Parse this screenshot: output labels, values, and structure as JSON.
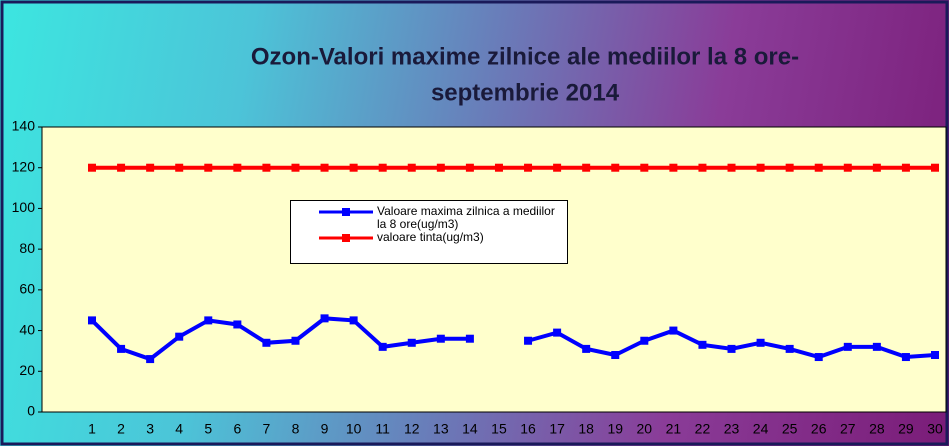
{
  "chart_data": {
    "type": "line",
    "title": [
      "Ozon-Valori maxime zilnice ale mediilor la 8 ore-",
      "septembrie  2014"
    ],
    "categories": [
      1,
      2,
      3,
      4,
      5,
      6,
      7,
      8,
      9,
      10,
      11,
      12,
      13,
      14,
      15,
      16,
      17,
      18,
      19,
      20,
      21,
      22,
      23,
      24,
      25,
      26,
      27,
      28,
      29,
      30
    ],
    "series": [
      {
        "name": "Valoare maxima zilnica a mediilor  la 8 ore(ug/m3)",
        "color": "#0000ff",
        "values": [
          45,
          31,
          26,
          37,
          45,
          43,
          34,
          35,
          46,
          45,
          32,
          34,
          36,
          36,
          null,
          35,
          39,
          31,
          28,
          35,
          40,
          33,
          31,
          34,
          31,
          27,
          32,
          32,
          27,
          28
        ]
      },
      {
        "name": "valoare tinta(ug/m3)",
        "color": "#ff0000",
        "values": [
          120,
          120,
          120,
          120,
          120,
          120,
          120,
          120,
          120,
          120,
          120,
          120,
          120,
          120,
          120,
          120,
          120,
          120,
          120,
          120,
          120,
          120,
          120,
          120,
          120,
          120,
          120,
          120,
          120,
          120
        ]
      }
    ],
    "ylim": [
      0,
      140
    ],
    "yticks": [
      0,
      20,
      40,
      60,
      80,
      100,
      120,
      140
    ],
    "grid": false
  }
}
